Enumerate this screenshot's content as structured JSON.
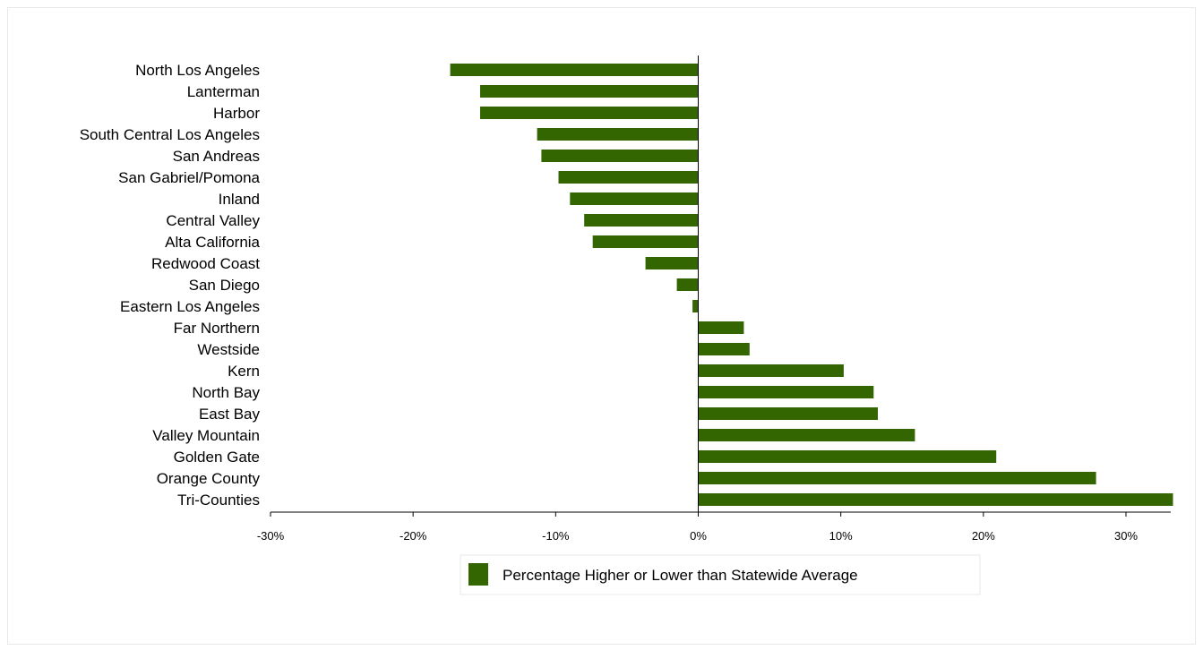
{
  "chart_data": {
    "type": "bar",
    "orientation": "horizontal",
    "categories": [
      "North Los Angeles",
      "Lanterman",
      "Harbor",
      "South Central Los Angeles",
      "San Andreas",
      "San Gabriel/Pomona",
      "Inland",
      "Central Valley",
      "Alta California",
      "Redwood Coast",
      "San Diego",
      "Eastern Los Angeles",
      "Far Northern",
      "Westside",
      "Kern",
      "North Bay",
      "East Bay",
      "Valley Mountain",
      "Golden Gate",
      "Orange County",
      "Tri-Counties"
    ],
    "series": [
      {
        "name": "Percentage Higher or Lower than Statewide Average",
        "values": [
          -17.4,
          -15.3,
          -15.3,
          -11.3,
          -11.0,
          -9.8,
          -9.0,
          -8.0,
          -7.4,
          -3.7,
          -1.5,
          -0.4,
          3.2,
          3.6,
          10.2,
          12.3,
          12.6,
          15.2,
          20.9,
          27.9,
          33.3
        ],
        "color": "#336600"
      }
    ],
    "xlim": [
      -30,
      33.5
    ],
    "x_ticks": [
      "-30%",
      "-20%",
      "-10%",
      "0%",
      "10%",
      "20%",
      "30%"
    ],
    "x_tick_values": [
      -30,
      -20,
      -10,
      0,
      10,
      20,
      30
    ],
    "xlabel": "",
    "ylabel": "",
    "title": "",
    "grid": false,
    "legend_position": "bottom"
  }
}
